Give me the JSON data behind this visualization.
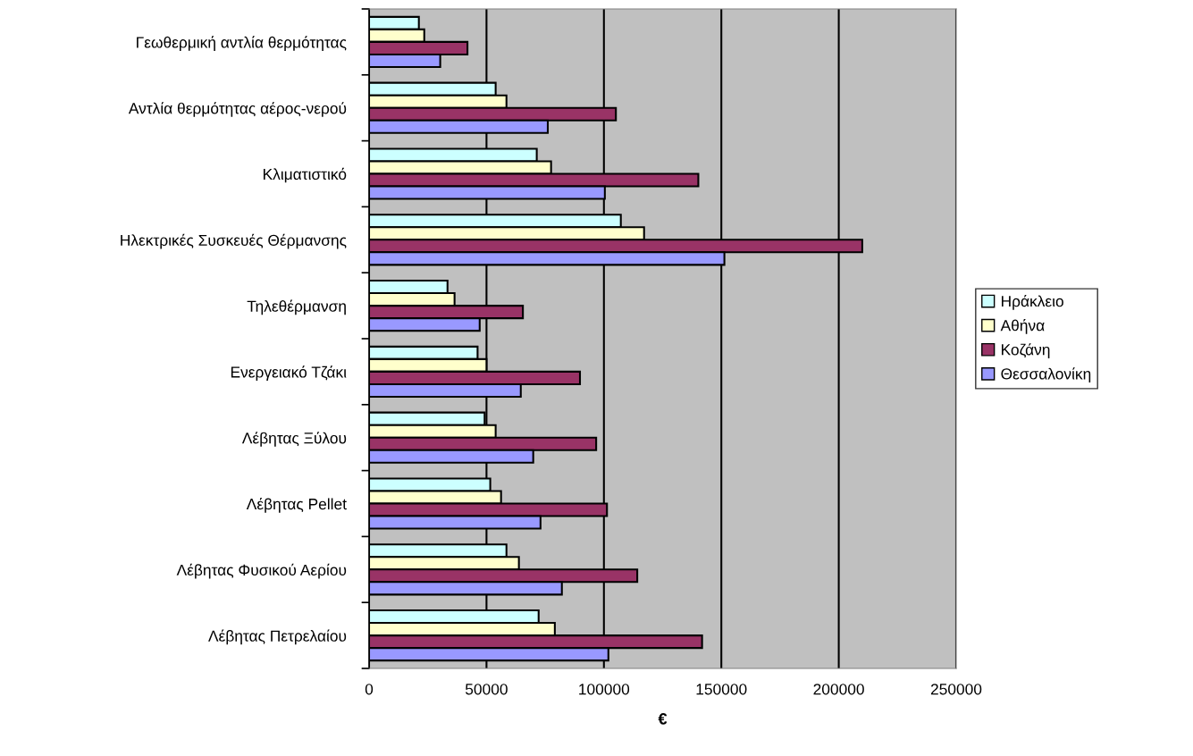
{
  "chart_data": {
    "type": "bar",
    "orientation": "horizontal",
    "xlabel": "€",
    "categories": [
      "Γεωθερμική αντλία θερμότητας",
      "Αντλία θερμότητας αέρος-νερού",
      "Κλιματιστικό",
      "Ηλεκτρικές Συσκευές Θέρμανσης",
      "Τηλεθέρμανση",
      "Ενεργειακό Τζάκι",
      "Λέβητας Ξύλου",
      "Λέβητας Pellet",
      "Λέβητας Φυσικού Αερίου",
      "Λέβητας Πετρελαίου"
    ],
    "series": [
      {
        "name": "Ηράκλειο",
        "color": "#ccffff",
        "values": [
          21200,
          53900,
          71400,
          107200,
          33400,
          46200,
          49200,
          51600,
          58500,
          72200
        ]
      },
      {
        "name": "Αθήνα",
        "color": "#ffffcc",
        "values": [
          23500,
          58500,
          77500,
          117100,
          36400,
          50000,
          53900,
          56200,
          63800,
          79100
        ]
      },
      {
        "name": "Κοζάνη",
        "color": "#993366",
        "values": [
          41900,
          105100,
          140200,
          210000,
          65500,
          89800,
          96700,
          101300,
          114200,
          141800
        ]
      },
      {
        "name": "Θεσσαλονίκη",
        "color": "#9999ff",
        "values": [
          30300,
          76100,
          100400,
          151300,
          47100,
          64600,
          69900,
          73000,
          82100,
          101900
        ]
      }
    ],
    "xlim": [
      0,
      250000
    ],
    "xticks": [
      0,
      50000,
      100000,
      150000,
      200000,
      250000
    ],
    "grid": "x",
    "legend": "right"
  }
}
